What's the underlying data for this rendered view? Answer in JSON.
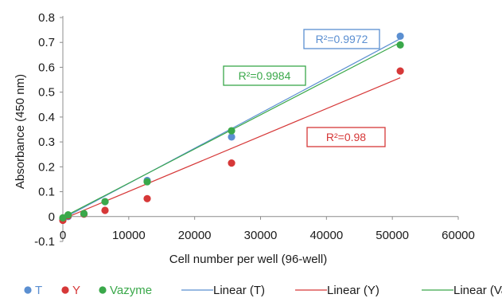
{
  "chart_data": {
    "type": "scatter",
    "xlabel": "Cell number per well (96-well)",
    "ylabel": "Absorbance (450 nm)",
    "xlim": [
      0,
      60000
    ],
    "ylim": [
      -0.1,
      0.8
    ],
    "x_ticks": [
      "0",
      "10000",
      "20000",
      "30000",
      "40000",
      "50000",
      "60000"
    ],
    "y_ticks": [
      "-0.1",
      "0",
      "0.1",
      "0.2",
      "0.3",
      "0.4",
      "0.5",
      "0.6",
      "0.7",
      "0.8"
    ],
    "grid": false,
    "legend_position": "bottom",
    "series": [
      {
        "name": "T",
        "color": "#5b8fd1",
        "points": [
          [
            0,
            -0.01
          ],
          [
            800,
            0.0
          ],
          [
            3200,
            0.01
          ],
          [
            6400,
            0.06
          ],
          [
            12800,
            0.145
          ],
          [
            25600,
            0.32
          ],
          [
            51200,
            0.725
          ]
        ],
        "trend": {
          "name": "Linear (T)",
          "x": [
            0,
            51200
          ],
          "y": [
            -0.008,
            0.715
          ]
        },
        "r2_label": "R²=0.9972"
      },
      {
        "name": "Y",
        "color": "#d63838",
        "points": [
          [
            0,
            -0.015
          ],
          [
            800,
            0.003
          ],
          [
            3200,
            0.01
          ],
          [
            6400,
            0.025
          ],
          [
            12800,
            0.072
          ],
          [
            25600,
            0.215
          ],
          [
            51200,
            0.585
          ]
        ],
        "trend": {
          "name": "Linear (Y)",
          "x": [
            0,
            51200
          ],
          "y": [
            -0.01,
            0.558
          ]
        },
        "r2_label": "R²=0.98"
      },
      {
        "name": "Vazyme",
        "color": "#3aa84a",
        "points": [
          [
            0,
            -0.005
          ],
          [
            800,
            0.007
          ],
          [
            3200,
            0.012
          ],
          [
            6400,
            0.06
          ],
          [
            12800,
            0.14
          ],
          [
            25600,
            0.345
          ],
          [
            51200,
            0.69
          ]
        ],
        "trend": {
          "name": "Linear (Vazyme)",
          "x": [
            0,
            51200
          ],
          "y": [
            -0.003,
            0.7
          ]
        },
        "r2_label": "R²=0.9984"
      }
    ]
  }
}
